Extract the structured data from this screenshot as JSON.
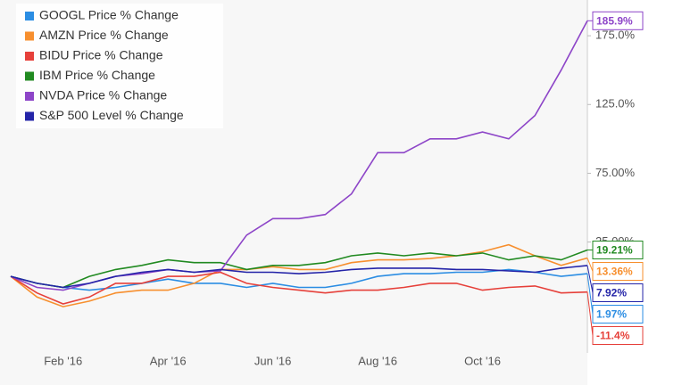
{
  "chart_data": {
    "type": "line",
    "categories": [
      null,
      null,
      "Feb '16",
      null,
      null,
      null,
      "Apr '16",
      null,
      null,
      null,
      "Jun '16",
      null,
      null,
      null,
      "Aug '16",
      null,
      null,
      null,
      "Oct '16",
      null,
      null,
      null,
      null
    ],
    "ylim": [
      -55,
      201
    ],
    "yticks": [
      {
        "value": 25,
        "label": "25.00%"
      },
      {
        "value": 75,
        "label": "75.00%"
      },
      {
        "value": 125,
        "label": "125.0%"
      },
      {
        "value": 175,
        "label": "175.0%"
      }
    ],
    "grid": false,
    "legend": "upper-left",
    "series": [
      {
        "name": "GOOGL Price % Change",
        "color": "#2b8de3",
        "values": [
          0,
          -5,
          -8,
          -10,
          -8,
          -5,
          -2,
          -5,
          -5,
          -8,
          -5,
          -8,
          -8,
          -5,
          0,
          2,
          2,
          3,
          3,
          5,
          3,
          0,
          1.97
        ],
        "value_labels": [
          null,
          null,
          null,
          null,
          null,
          null,
          null,
          null,
          null,
          null,
          null,
          null,
          null,
          null,
          null,
          null,
          null,
          null,
          null,
          null,
          null,
          null,
          "1.97%"
        ]
      },
      {
        "name": "AMZN Price % Change",
        "color": "#f78f2e",
        "values": [
          0,
          -15,
          -22,
          -18,
          -12,
          -10,
          -10,
          -5,
          5,
          5,
          7,
          5,
          5,
          10,
          12,
          12,
          13,
          15,
          18,
          23,
          15,
          8,
          13.36
        ],
        "value_labels": [
          null,
          null,
          null,
          null,
          null,
          null,
          null,
          null,
          null,
          null,
          null,
          null,
          null,
          null,
          null,
          null,
          null,
          null,
          null,
          null,
          null,
          null,
          "13.36%"
        ]
      },
      {
        "name": "BIDU Price % Change",
        "color": "#e6403a",
        "values": [
          0,
          -12,
          -20,
          -15,
          -5,
          -5,
          0,
          0,
          3,
          -5,
          -8,
          -10,
          -12,
          -10,
          -10,
          -8,
          -5,
          -5,
          -10,
          -8,
          -7,
          -12,
          -11.4
        ],
        "value_labels": [
          null,
          null,
          null,
          null,
          null,
          null,
          null,
          null,
          null,
          null,
          null,
          null,
          null,
          null,
          null,
          null,
          null,
          null,
          null,
          null,
          null,
          null,
          "-11.4%"
        ]
      },
      {
        "name": "IBM Price % Change",
        "color": "#218a21",
        "values": [
          0,
          -5,
          -8,
          0,
          5,
          8,
          12,
          10,
          10,
          5,
          8,
          8,
          10,
          15,
          17,
          15,
          17,
          15,
          17,
          12,
          15,
          12,
          19.21
        ],
        "value_labels": [
          null,
          null,
          null,
          null,
          null,
          null,
          null,
          null,
          null,
          null,
          null,
          null,
          null,
          null,
          null,
          null,
          null,
          null,
          null,
          null,
          null,
          null,
          "19.21%"
        ]
      },
      {
        "name": "NVDA Price % Change",
        "color": "#8d45c8",
        "values": [
          0,
          -8,
          -10,
          -5,
          0,
          2,
          5,
          3,
          4,
          30,
          42,
          42,
          45,
          60,
          90,
          90,
          100,
          100,
          105,
          100,
          117,
          150,
          185.9
        ],
        "value_labels": [
          null,
          null,
          null,
          null,
          null,
          null,
          null,
          null,
          null,
          null,
          null,
          null,
          null,
          null,
          null,
          null,
          null,
          null,
          null,
          null,
          null,
          null,
          "185.9%"
        ]
      },
      {
        "name": "S&P 500 Level % Change",
        "color": "#2424a8",
        "values": [
          0,
          -5,
          -8,
          -5,
          0,
          3,
          5,
          3,
          5,
          3,
          3,
          2,
          3,
          5,
          6,
          6,
          6,
          5,
          5,
          4,
          3,
          6,
          7.92
        ],
        "value_labels": [
          null,
          null,
          null,
          null,
          null,
          null,
          null,
          null,
          null,
          null,
          null,
          null,
          null,
          null,
          null,
          null,
          null,
          null,
          null,
          null,
          null,
          null,
          "7.92%"
        ]
      }
    ]
  }
}
